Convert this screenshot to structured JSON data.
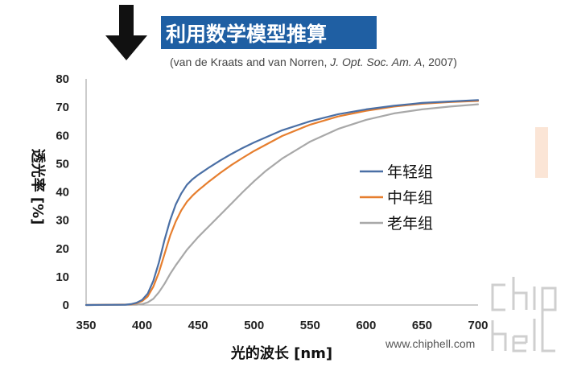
{
  "title": "利用数学模型推算",
  "citation": {
    "authors": "(van de Kraats and van Norren, ",
    "journal": "J. Opt. Soc. Am. A",
    "year": ", 2007)"
  },
  "watermark": {
    "url": "www.chiphell.com"
  },
  "colors": {
    "young": "#4a6fa5",
    "middle": "#e67e2e",
    "old": "#a8a8a8",
    "title_bg": "#1f5fa3",
    "arrow": "#111111",
    "side_bar": "#fbe5d6"
  },
  "chart_data": {
    "type": "line",
    "title": "利用数学模型推算",
    "xlabel": "光的波长 [nm]",
    "ylabel": "透光率 [%]",
    "xlim": [
      350,
      700
    ],
    "ylim": [
      0,
      80
    ],
    "xticks": [
      350,
      400,
      450,
      500,
      550,
      600,
      650,
      700
    ],
    "yticks": [
      0,
      10,
      20,
      30,
      40,
      50,
      60,
      70,
      80
    ],
    "grid": false,
    "legend_position": "center-right",
    "series": [
      {
        "name": "年轻组",
        "x": [
          350,
          385,
          390,
          395,
          400,
          405,
          410,
          415,
          420,
          425,
          430,
          435,
          440,
          445,
          450,
          460,
          470,
          480,
          490,
          500,
          525,
          550,
          575,
          600,
          625,
          650,
          675,
          700
        ],
        "y": [
          0,
          0.1,
          0.3,
          0.8,
          1.8,
          4,
          8.5,
          15,
          23,
          30,
          35.5,
          39.5,
          42.5,
          44.5,
          46,
          48.7,
          51.2,
          53.5,
          55.6,
          57.5,
          61.8,
          65,
          67.5,
          69.2,
          70.5,
          71.5,
          72,
          72.5
        ]
      },
      {
        "name": "中年组",
        "x": [
          350,
          390,
          395,
          400,
          405,
          410,
          415,
          420,
          425,
          430,
          435,
          440,
          445,
          450,
          460,
          470,
          480,
          490,
          500,
          525,
          550,
          575,
          600,
          625,
          650,
          675,
          700
        ],
        "y": [
          0,
          0.2,
          0.6,
          1.4,
          3,
          6.5,
          11.5,
          18,
          24.5,
          29.5,
          33.5,
          36.5,
          38.7,
          40.5,
          43.8,
          46.8,
          49.6,
          52.1,
          54.5,
          59.8,
          63.8,
          66.7,
          68.7,
          70.2,
          71.2,
          71.8,
          72.2
        ]
      },
      {
        "name": "老年组",
        "x": [
          350,
          395,
          400,
          405,
          410,
          415,
          420,
          425,
          430,
          440,
          450,
          460,
          470,
          480,
          490,
          500,
          510,
          525,
          550,
          575,
          600,
          625,
          650,
          675,
          700
        ],
        "y": [
          0,
          0.1,
          0.3,
          0.9,
          2.2,
          4.5,
          7.5,
          11,
          14,
          19.5,
          24,
          28,
          32,
          36,
          40,
          43.8,
          47.3,
          51.8,
          57.8,
          62.3,
          65.5,
          67.8,
          69.2,
          70.2,
          71
        ]
      }
    ]
  }
}
